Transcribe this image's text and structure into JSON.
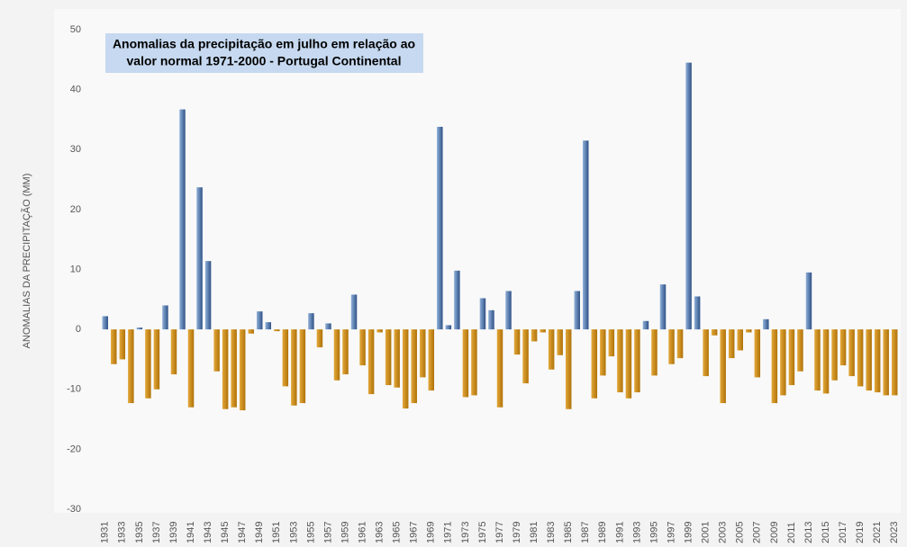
{
  "chart_data": {
    "type": "bar",
    "title_lines": [
      "Anomalias da precipitação em julho em relação ao",
      "valor normal  1971-2000 - Portugal Continental"
    ],
    "y_label": "ANOMALIAS DA PRECIPITAÇÃO (MM)",
    "categories": [
      1931,
      null,
      1933,
      null,
      1935,
      null,
      1937,
      null,
      1939,
      null,
      1941,
      null,
      1943,
      null,
      1945,
      null,
      1947,
      null,
      1949,
      null,
      1951,
      null,
      1953,
      null,
      1955,
      null,
      1957,
      null,
      1959,
      null,
      1961,
      null,
      1963,
      null,
      1965,
      null,
      1967,
      null,
      1969,
      null,
      1971,
      null,
      1973,
      null,
      1975,
      null,
      1977,
      null,
      1979,
      null,
      1981,
      null,
      1983,
      null,
      1985,
      null,
      1987,
      null,
      1989,
      null,
      1991,
      null,
      1993,
      null,
      1995,
      null,
      1997,
      null,
      1999,
      null,
      2001,
      null,
      2003,
      null,
      2005,
      null,
      2007,
      null,
      2009,
      null,
      2011,
      null,
      2013,
      null,
      2015,
      null,
      2017,
      null,
      2019,
      null,
      2021,
      null,
      2023
    ],
    "values": [
      2.2,
      -5.8,
      -5,
      -12.3,
      0.3,
      -11.5,
      -10,
      4,
      -7.5,
      36.7,
      -13,
      23.7,
      11.4,
      -7,
      -13.3,
      -13,
      -13.5,
      -0.7,
      3,
      1.2,
      -0.3,
      -9.5,
      -12.7,
      -12.3,
      2.7,
      -3,
      1,
      -8.5,
      -7.5,
      5.8,
      -6,
      -10.8,
      -0.5,
      -9.3,
      -9.7,
      -13.2,
      -12.3,
      -8,
      -10.2,
      33.8,
      0.7,
      9.8,
      -11.3,
      -11,
      5.2,
      3.2,
      -13,
      6.4,
      -4.2,
      -9,
      -2,
      -0.5,
      -6.7,
      -4.3,
      -13.3,
      6.4,
      31.5,
      -11.5,
      -7.7,
      -4.5,
      -10.5,
      -11.5,
      -10.5,
      1.4,
      -7.7,
      7.5,
      -5.8,
      -4.8,
      44.5,
      5.5,
      -7.8,
      -1,
      -12.3,
      -4.8,
      -3.5,
      -0.5,
      -8,
      1.7,
      -12.3,
      -11,
      -9.3,
      -7,
      9.5,
      -10.2,
      -10.7,
      -8.5,
      -6,
      -7.8,
      -9.5,
      -10.2,
      -10.5,
      -11,
      -11
    ],
    "positive_color": "#4a6fa5",
    "negative_color": "#c8870d",
    "ylim": [
      -30,
      50
    ],
    "yticks": [
      -30,
      -20,
      -10,
      0,
      10,
      20,
      30,
      40,
      50
    ],
    "grid": false
  }
}
